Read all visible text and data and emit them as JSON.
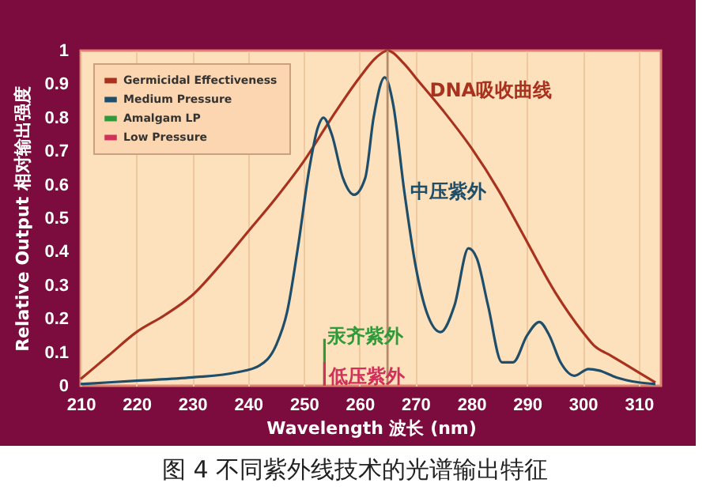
{
  "chart_data": {
    "type": "line",
    "xlabel": "Wavelength  波长 (nm)",
    "ylabel": "Relative Output 相对输出强度",
    "xlim": [
      210,
      314
    ],
    "ylim": [
      0,
      1
    ],
    "xticks": [
      210,
      220,
      230,
      240,
      250,
      260,
      270,
      280,
      290,
      300,
      310
    ],
    "yticks": [
      0,
      0.1,
      0.2,
      0.3,
      0.4,
      0.5,
      0.6,
      0.7,
      0.8,
      0.9,
      1
    ],
    "grid": "x",
    "legend": "top left",
    "series": [
      {
        "name": "Germicidal Effectiveness",
        "color": "#a8321e",
        "x": [
          210,
          215,
          220,
          225,
          230,
          235,
          240,
          245,
          250,
          255,
          260,
          263,
          265,
          268,
          270,
          275,
          280,
          285,
          289,
          295,
          300,
          302,
          305,
          310,
          313
        ],
        "values": [
          0.02,
          0.09,
          0.16,
          0.21,
          0.27,
          0.36,
          0.46,
          0.56,
          0.67,
          0.8,
          0.92,
          0.98,
          1,
          0.96,
          0.92,
          0.82,
          0.71,
          0.58,
          0.46,
          0.28,
          0.16,
          0.12,
          0.09,
          0.04,
          0.01
        ]
      },
      {
        "name": "Medium Pressure",
        "color": "#1f4e6b",
        "x": [
          210,
          215,
          220,
          230,
          238,
          242,
          245,
          247,
          249,
          251,
          252.5,
          253.5,
          255,
          257,
          259,
          261,
          262.5,
          264.5,
          266,
          268,
          270,
          272,
          274.5,
          277,
          279.5,
          281,
          283,
          285.5,
          287.5,
          290,
          292.2,
          294,
          296,
          298.5,
          301,
          303,
          306,
          310,
          313
        ],
        "values": [
          0.005,
          0.01,
          0.015,
          0.025,
          0.04,
          0.06,
          0.12,
          0.22,
          0.42,
          0.65,
          0.77,
          0.8,
          0.75,
          0.62,
          0.57,
          0.62,
          0.8,
          0.92,
          0.84,
          0.58,
          0.36,
          0.22,
          0.16,
          0.24,
          0.41,
          0.38,
          0.24,
          0.07,
          0.07,
          0.15,
          0.19,
          0.15,
          0.07,
          0.03,
          0.05,
          0.045,
          0.025,
          0.01,
          0.005
        ]
      },
      {
        "name": "Amalgam LP",
        "color": "#2e9a3a",
        "x": [
          253.7,
          253.7
        ],
        "values": [
          0,
          0.14
        ]
      },
      {
        "name": "Low Pressure",
        "color": "#d0305a",
        "x": [
          253.7,
          253.7
        ],
        "values": [
          0,
          0.07
        ]
      }
    ],
    "ref_lines": [
      {
        "axis": "x",
        "value": 265,
        "color": "#b58a6a"
      }
    ],
    "annotations": [
      {
        "text": "DNA吸收曲线",
        "x": 270,
        "y": 0.92
      },
      {
        "text": "中压紫外",
        "x": 268,
        "y": 0.58
      },
      {
        "text": "汞齐紫外",
        "x": 253.7,
        "y": 0.14
      },
      {
        "text": "低压紫外",
        "x": 253.7,
        "y": 0.07
      },
      "图 4 不同紫外线技术的光谱输出特征"
    ]
  }
}
